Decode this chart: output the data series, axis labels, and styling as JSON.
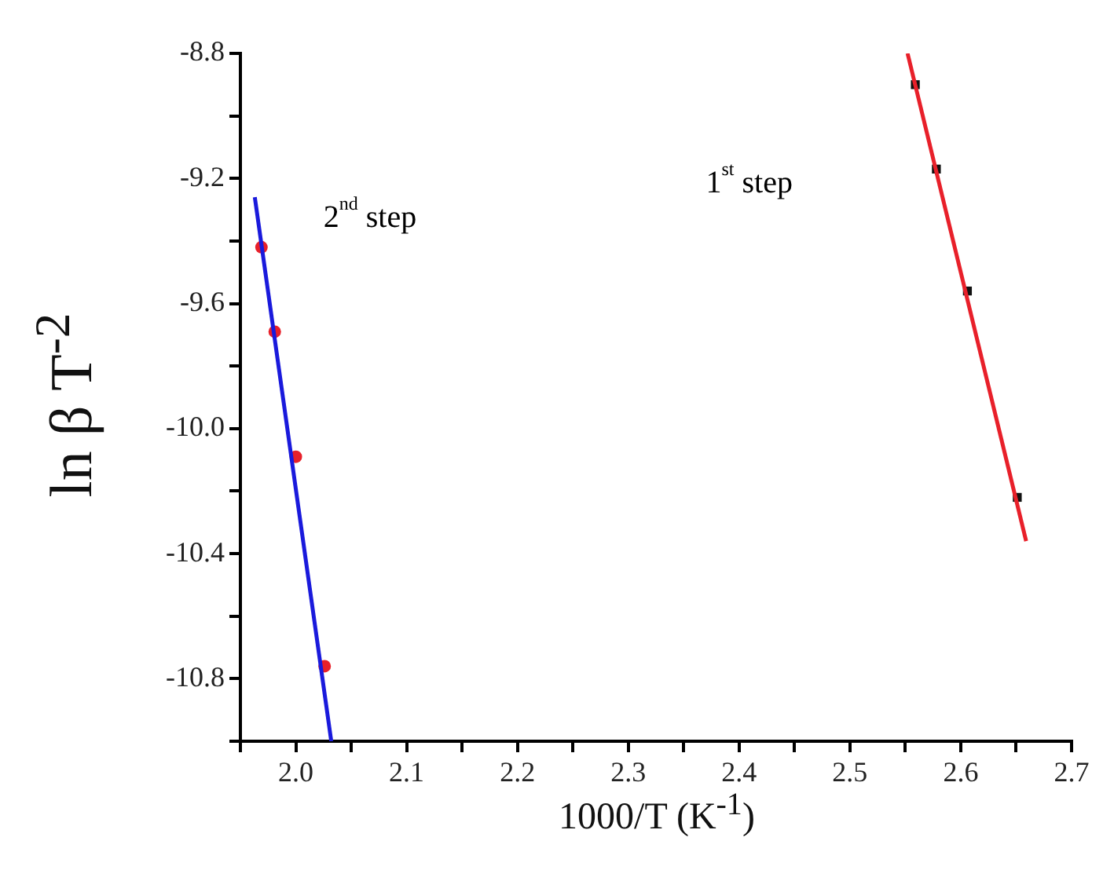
{
  "chart_data": {
    "type": "scatter",
    "xlabel": "1000/T (K$^{-1}$)",
    "ylabel": "ln β T$^{-2}$",
    "xlim": [
      1.95,
      2.7
    ],
    "ylim": [
      -11.0,
      -8.8
    ],
    "xticks": [
      {
        "value": 1.95,
        "label": null
      },
      "2.0",
      {
        "value": 2.05,
        "label": null
      },
      2.1,
      {
        "value": 2.15,
        "label": null
      },
      2.2,
      {
        "value": 2.25,
        "label": null
      },
      2.3,
      {
        "value": 2.35,
        "label": null
      },
      2.4,
      {
        "value": 2.45,
        "label": null
      },
      2.5,
      {
        "value": 2.55,
        "label": null
      },
      2.6,
      {
        "value": 2.65,
        "label": null
      },
      2.7
    ],
    "yticks": [
      {
        "value": -11.0,
        "label": null
      },
      -10.8,
      {
        "value": -10.6,
        "label": null
      },
      -10.4,
      {
        "value": -10.2,
        "label": null
      },
      {
        "value": -10.0,
        "label": "-10.0"
      },
      {
        "value": -9.8,
        "label": null
      },
      -9.6,
      {
        "value": -9.4,
        "label": null
      },
      -9.2,
      {
        "value": -9.0,
        "label": null
      },
      -8.8
    ],
    "grid": false,
    "legend": false,
    "series": [
      {
        "type": "line",
        "color": "#1a1adc",
        "marker": "none",
        "x": [
          1.963,
          2.032
        ],
        "values": [
          -9.26,
          -11.0
        ]
      },
      {
        "type": "scatter",
        "color": "#e8202a",
        "marker": "circle",
        "x": [
          1.969,
          1.981,
          2.0,
          2.026
        ],
        "values": [
          -9.42,
          -9.69,
          -10.09,
          -10.76
        ]
      },
      {
        "type": "line",
        "color": "#e8202a",
        "marker": "none",
        "x": [
          2.552,
          2.659
        ],
        "values": [
          -8.8,
          -10.36
        ]
      },
      {
        "type": "scatter",
        "color": "#111111",
        "marker": "square",
        "x": [
          2.559,
          2.578,
          2.606,
          2.651
        ],
        "values": [
          -8.9,
          -9.17,
          -9.56,
          -10.22
        ]
      }
    ],
    "annotations": [
      "1$^{st}$ step",
      "2$^{nd}$ step"
    ]
  }
}
